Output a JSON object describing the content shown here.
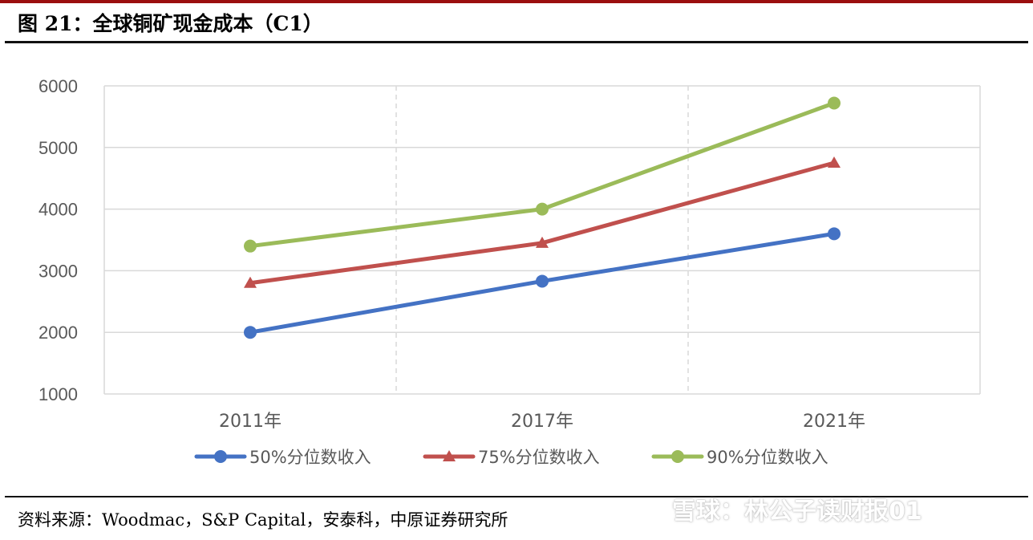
{
  "figure": {
    "title": "图 21：全球铜矿现金成本（C1）",
    "source": "资料来源：Woodmac，S&P Capital，安泰科，中原证券研究所",
    "watermark": "雪球：林公子读财报01"
  },
  "colors": {
    "accent_rule": "#9b0f0f",
    "grid": "#d9d9d9",
    "axis_text": "#595959"
  },
  "chart_data": {
    "type": "line",
    "categories": [
      "2011年",
      "2017年",
      "2021年"
    ],
    "series": [
      {
        "name": "50%分位数收入",
        "values": [
          2000,
          2830,
          3600
        ],
        "color": "#4472c4",
        "marker": "circle"
      },
      {
        "name": "75%分位数收入",
        "values": [
          2800,
          3450,
          4750
        ],
        "color": "#c0504d",
        "marker": "triangle"
      },
      {
        "name": "90%分位数收入",
        "values": [
          3400,
          4000,
          5720
        ],
        "color": "#9bbb59",
        "marker": "circle"
      }
    ],
    "ylim": [
      1000,
      6000
    ],
    "yticks": [
      "1000",
      "2000",
      "3000",
      "4000",
      "5000",
      "6000"
    ],
    "title": "",
    "xlabel": "",
    "ylabel": "",
    "grid": true,
    "legend": "bottom"
  }
}
